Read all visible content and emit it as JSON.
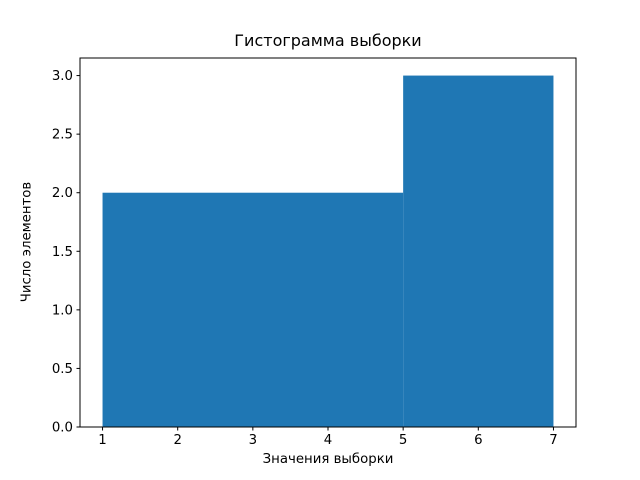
{
  "figure": {
    "background_color": "#ffffff",
    "axes_edge_color": "#000000",
    "text_color": "#000000"
  },
  "chart_data": {
    "type": "bar",
    "title": "Гистограмма выборки",
    "xlabel": "Значения выборки",
    "ylabel": "Число элементов",
    "bars": [
      {
        "x_start": 1,
        "x_end": 5,
        "height": 2
      },
      {
        "x_start": 5,
        "x_end": 7,
        "height": 3
      }
    ],
    "bar_color": "#1f77b4",
    "x_ticks": [
      1,
      2,
      3,
      4,
      5,
      6,
      7
    ],
    "x_tick_labels": [
      "1",
      "2",
      "3",
      "4",
      "5",
      "6",
      "7"
    ],
    "y_ticks": [
      0.0,
      0.5,
      1.0,
      1.5,
      2.0,
      2.5,
      3.0
    ],
    "y_tick_labels": [
      "0.0",
      "0.5",
      "1.0",
      "1.5",
      "2.0",
      "2.5",
      "3.0"
    ],
    "xlim": [
      0.7,
      7.3
    ],
    "ylim": [
      0,
      3.15
    ],
    "grid": false,
    "legend": null
  }
}
